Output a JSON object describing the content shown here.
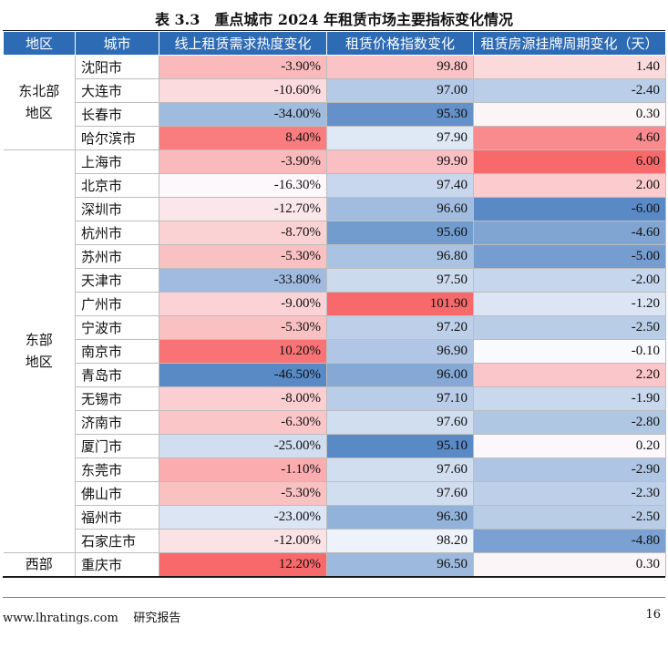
{
  "title": "表 3.3　重点城市 2024 年租赁市场主要指标变化情况",
  "headers": [
    "地区",
    "城市",
    "线上租赁需求热度变化",
    "租赁价格指数变化",
    "租赁房源挂牌周期变化（天）"
  ],
  "groups": [
    {
      "region": "东北部\n地区",
      "rows": [
        {
          "city": "沈阳市",
          "demand": "-3.90%",
          "price": "99.80",
          "period": "1.40"
        },
        {
          "city": "大连市",
          "demand": "-10.60%",
          "price": "97.00",
          "period": "-2.40"
        },
        {
          "city": "长春市",
          "demand": "-34.00%",
          "price": "95.30",
          "period": "0.30"
        },
        {
          "city": "哈尔滨市",
          "demand": "8.40%",
          "price": "97.90",
          "period": "4.60"
        }
      ]
    },
    {
      "region": "东部\n地区",
      "rows": [
        {
          "city": "上海市",
          "demand": "-3.90%",
          "price": "99.90",
          "period": "6.00"
        },
        {
          "city": "北京市",
          "demand": "-16.30%",
          "price": "97.40",
          "period": "2.00"
        },
        {
          "city": "深圳市",
          "demand": "-12.70%",
          "price": "96.60",
          "period": "-6.00"
        },
        {
          "city": "杭州市",
          "demand": "-8.70%",
          "price": "95.60",
          "period": "-4.60"
        },
        {
          "city": "苏州市",
          "demand": "-5.30%",
          "price": "96.80",
          "period": "-5.00"
        },
        {
          "city": "天津市",
          "demand": "-33.80%",
          "price": "97.50",
          "period": "-2.00"
        },
        {
          "city": "广州市",
          "demand": "-9.00%",
          "price": "101.90",
          "period": "-1.20"
        },
        {
          "city": "宁波市",
          "demand": "-5.30%",
          "price": "97.20",
          "period": "-2.50"
        },
        {
          "city": "南京市",
          "demand": "10.20%",
          "price": "96.90",
          "period": "-0.10"
        },
        {
          "city": "青岛市",
          "demand": "-46.50%",
          "price": "96.00",
          "period": "2.20"
        },
        {
          "city": "无锡市",
          "demand": "-8.00%",
          "price": "97.10",
          "period": "-1.90"
        },
        {
          "city": "济南市",
          "demand": "-6.30%",
          "price": "97.60",
          "period": "-2.80"
        },
        {
          "city": "厦门市",
          "demand": "-25.00%",
          "price": "95.10",
          "period": "0.20"
        },
        {
          "city": "东莞市",
          "demand": "-1.10%",
          "price": "97.60",
          "period": "-2.90"
        },
        {
          "city": "佛山市",
          "demand": "-5.30%",
          "price": "97.60",
          "period": "-2.30"
        },
        {
          "city": "福州市",
          "demand": "-23.00%",
          "price": "96.30",
          "period": "-2.50"
        },
        {
          "city": "石家庄市",
          "demand": "-12.00%",
          "price": "98.20",
          "period": "-4.80"
        }
      ]
    },
    {
      "region": "西部",
      "rows": [
        {
          "city": "重庆市",
          "demand": "12.20%",
          "price": "96.50",
          "period": "0.30"
        }
      ]
    }
  ],
  "colors": {
    "header_bg": "#2e6bb5",
    "max_red": "#f8696b",
    "mid_white": "#fcfcff",
    "min_blue": "#5a8ac6"
  },
  "footer": {
    "site": "www.lhratings.com",
    "label": "研究报告",
    "page": "16"
  }
}
